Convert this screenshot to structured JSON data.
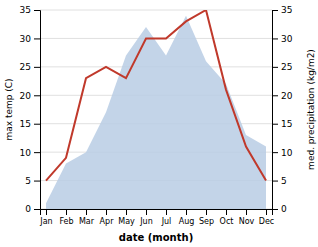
{
  "chart_data": {
    "type": "line",
    "xlabel": "date (month)",
    "ylabel": "max temp (C)",
    "y2label": "med. precipitation (kg/m2)",
    "categories": [
      "Jan",
      "Feb",
      "Mar",
      "Apr",
      "May",
      "Jun",
      "Jul",
      "Aug",
      "Sep",
      "Oct",
      "Nov",
      "Dec"
    ],
    "series": [
      {
        "type": "area",
        "axis": "y2",
        "color": "#b8cce4",
        "values": [
          1,
          8,
          10,
          17,
          27,
          32,
          27,
          34,
          26,
          22,
          13,
          11
        ]
      },
      {
        "type": "line",
        "color": "#c0392b",
        "values": [
          5,
          9,
          23,
          25,
          23,
          30,
          30,
          33,
          35,
          21,
          11,
          5
        ]
      }
    ],
    "ylim": [
      0,
      35
    ],
    "yticks": [
      0,
      5,
      10,
      15,
      20,
      25,
      30,
      35
    ],
    "y2lim": [
      0,
      35
    ],
    "y2ticks": [
      0,
      5,
      10,
      15,
      20,
      25,
      30,
      35
    ],
    "grid": true
  }
}
